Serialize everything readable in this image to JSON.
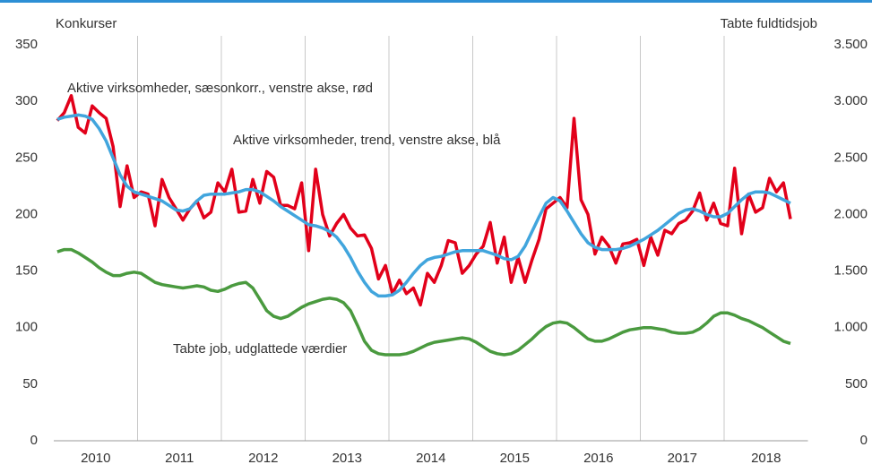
{
  "chart_data": {
    "type": "line",
    "y_label": "Konkurser",
    "y2_label": "Tabte fuldtidsjob",
    "annotations": [
      "Aktive virksomheder, sæsonkorr., venstre akse, rød",
      "Aktive virksomheder, trend, venstre akse, blå",
      "Tabte job, udglattede værdier"
    ],
    "categories": [
      null,
      null,
      null,
      null,
      null,
      null,
      "2010",
      null,
      null,
      null,
      null,
      null,
      null,
      null,
      null,
      null,
      null,
      null,
      "2011",
      null,
      null,
      null,
      null,
      null,
      null,
      null,
      null,
      null,
      null,
      null,
      "2012",
      null,
      null,
      null,
      null,
      null,
      null,
      null,
      null,
      null,
      null,
      null,
      "2013",
      null,
      null,
      null,
      null,
      null,
      null,
      null,
      null,
      null,
      null,
      null,
      "2014",
      null,
      null,
      null,
      null,
      null,
      null,
      null,
      null,
      null,
      null,
      null,
      "2015",
      null,
      null,
      null,
      null,
      null,
      null,
      null,
      null,
      null,
      null,
      null,
      "2016",
      null,
      null,
      null,
      null,
      null,
      null,
      null,
      null,
      null,
      null,
      null,
      "2017",
      null,
      null,
      null,
      null,
      null,
      null,
      null,
      null,
      null,
      null,
      null,
      "2018",
      null,
      null,
      null
    ],
    "series": [
      {
        "color": "#e2001a",
        "axis": "y",
        "values": [
          283,
          290,
          305,
          277,
          272,
          296,
          290,
          285,
          260,
          207,
          243,
          215,
          220,
          218,
          190,
          231,
          215,
          205,
          195,
          205,
          212,
          197,
          202,
          228,
          220,
          240,
          202,
          203,
          231,
          210,
          238,
          233,
          208,
          208,
          205,
          228,
          168,
          240,
          200,
          181,
          192,
          200,
          188,
          181,
          182,
          170,
          143,
          155,
          130,
          142,
          130,
          135,
          120,
          148,
          140,
          155,
          177,
          175,
          148,
          155,
          165,
          172,
          193,
          157,
          180,
          140,
          162,
          140,
          160,
          178,
          205,
          210,
          215,
          206,
          285,
          213,
          200,
          165,
          180,
          172,
          157,
          174,
          175,
          178,
          155,
          180,
          164,
          186,
          183,
          192,
          195,
          203,
          219,
          195,
          210,
          192,
          190,
          241,
          183,
          218,
          202,
          206,
          232,
          220,
          228,
          196
        ]
      },
      {
        "color": "#41a5dd",
        "axis": "y",
        "values": [
          284,
          286,
          287,
          288,
          287,
          284,
          276,
          265,
          250,
          235,
          225,
          220,
          218,
          216,
          214,
          212,
          208,
          204,
          203,
          205,
          212,
          217,
          218,
          218,
          218,
          219,
          220,
          222,
          222,
          220,
          216,
          212,
          207,
          203,
          199,
          195,
          191,
          190,
          188,
          185,
          180,
          172,
          162,
          150,
          140,
          132,
          128,
          128,
          129,
          133,
          140,
          148,
          155,
          160,
          162,
          163,
          165,
          167,
          168,
          168,
          168,
          168,
          166,
          164,
          161,
          160,
          163,
          172,
          185,
          198,
          210,
          215,
          212,
          203,
          193,
          183,
          175,
          171,
          169,
          169,
          169,
          170,
          172,
          175,
          178,
          182,
          186,
          191,
          196,
          201,
          204,
          205,
          203,
          200,
          198,
          198,
          201,
          207,
          213,
          218,
          220,
          220,
          219,
          216,
          213,
          210
        ]
      },
      {
        "color": "#4a9a3f",
        "axis": "y2",
        "values": [
          1670,
          1690,
          1690,
          1660,
          1620,
          1580,
          1530,
          1490,
          1460,
          1460,
          1480,
          1490,
          1480,
          1440,
          1400,
          1380,
          1370,
          1360,
          1350,
          1360,
          1370,
          1360,
          1330,
          1320,
          1340,
          1370,
          1390,
          1400,
          1350,
          1250,
          1150,
          1100,
          1080,
          1100,
          1140,
          1180,
          1210,
          1230,
          1250,
          1260,
          1250,
          1220,
          1150,
          1020,
          880,
          800,
          770,
          760,
          760,
          760,
          770,
          790,
          820,
          850,
          870,
          880,
          890,
          900,
          910,
          900,
          870,
          830,
          790,
          770,
          760,
          770,
          800,
          850,
          900,
          960,
          1010,
          1040,
          1050,
          1040,
          1000,
          950,
          900,
          880,
          880,
          900,
          930,
          960,
          980,
          990,
          1000,
          1000,
          990,
          980,
          960,
          950,
          950,
          960,
          990,
          1040,
          1100,
          1130,
          1130,
          1110,
          1080,
          1060,
          1030,
          1000,
          960,
          920,
          880,
          860
        ]
      }
    ],
    "ylim": [
      0,
      350
    ],
    "yticks": [
      0,
      50,
      100,
      150,
      200,
      250,
      300,
      350
    ],
    "y2lim": [
      0,
      3500
    ],
    "y2ticks": [
      0,
      500,
      {
        "value": 1000,
        "label": "1.000"
      },
      {
        "value": 1500,
        "label": "1.500"
      },
      {
        "value": 2000,
        "label": "2.000"
      },
      {
        "value": 2500,
        "label": "2.500"
      },
      {
        "value": 3000,
        "label": "3.000"
      },
      {
        "value": 3500,
        "label": "3.500"
      }
    ]
  }
}
